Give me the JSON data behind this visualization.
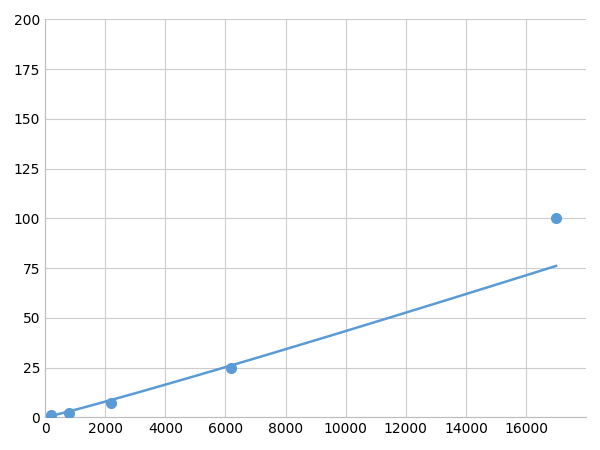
{
  "x_points": [
    200,
    800,
    2200,
    6200,
    17000
  ],
  "y_points": [
    1,
    2,
    7,
    25,
    100
  ],
  "line_color": "#5b9bd5",
  "marker_color": "#5b9bd5",
  "marker_size": 7,
  "line_width": 1.8,
  "xlim": [
    0,
    18000
  ],
  "ylim": [
    0,
    200
  ],
  "xticks": [
    0,
    2000,
    4000,
    6000,
    8000,
    10000,
    12000,
    14000,
    16000
  ],
  "yticks": [
    0,
    25,
    50,
    75,
    100,
    125,
    150,
    175,
    200
  ],
  "grid_color": "#cccccc",
  "background_color": "#ffffff",
  "tick_fontsize": 10,
  "fig_width": 6.0,
  "fig_height": 4.5,
  "dpi": 100
}
